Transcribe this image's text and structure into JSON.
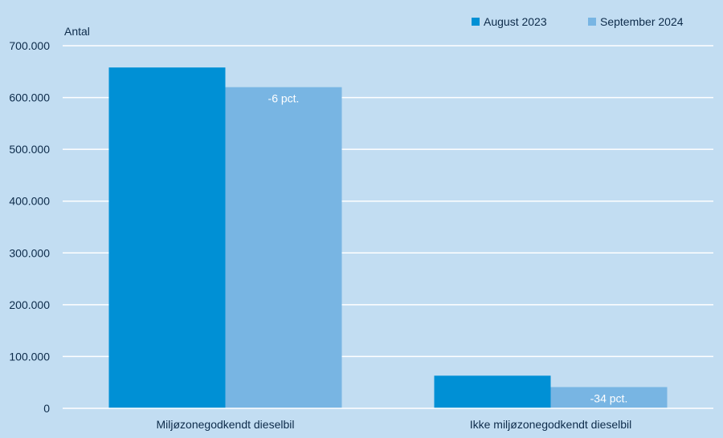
{
  "chart_data": {
    "type": "bar",
    "ylabel": "Antal",
    "categories": [
      "Miljøzonegodkendt dieselbil",
      "Ikke miljøzonegodkendt dieselbil"
    ],
    "series": [
      {
        "name": "August 2023",
        "color": "#0090d5",
        "values": [
          658000,
          63000
        ]
      },
      {
        "name": "September 2024",
        "color": "#78b5e3",
        "values": [
          620000,
          41000
        ]
      }
    ],
    "data_labels": [
      "-6 pct.",
      "-34 pct."
    ],
    "ylim": [
      0,
      700000
    ],
    "yticks": [
      0,
      100000,
      200000,
      300000,
      400000,
      500000,
      600000,
      700000
    ],
    "ytick_labels": [
      "0",
      "100.000",
      "200.000",
      "300.000",
      "400.000",
      "500.000",
      "600.000",
      "700.000"
    ],
    "grid": true,
    "legend_position": "top-right"
  }
}
